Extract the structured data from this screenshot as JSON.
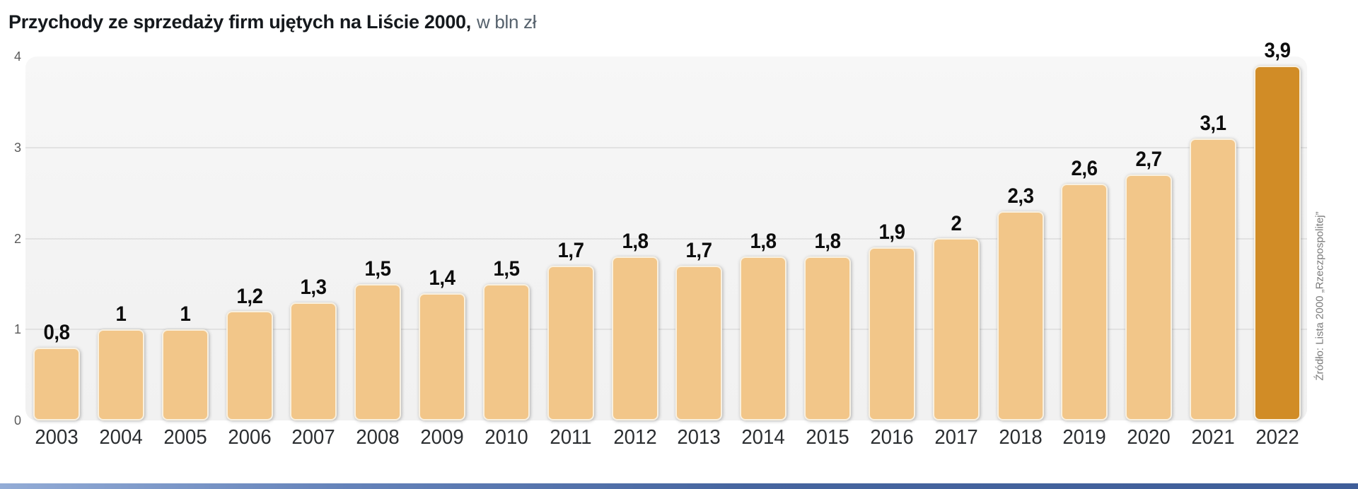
{
  "header": {
    "title": "Przychody ze sprzedaży firm ujętych na Liście 2000,",
    "unit": "w bln zł"
  },
  "source": {
    "text": "Źródło: Lista 2000 „Rzeczpospolitej”"
  },
  "chart_data": {
    "type": "bar",
    "title": "Przychody ze sprzedaży firm ujętych na Liście 2000",
    "ylabel": "w bln zł",
    "categories": [
      "2003",
      "2004",
      "2005",
      "2006",
      "2007",
      "2008",
      "2009",
      "2010",
      "2011",
      "2012",
      "2013",
      "2014",
      "2015",
      "2016",
      "2017",
      "2018",
      "2019",
      "2020",
      "2021",
      "2022"
    ],
    "values": [
      0.8,
      1,
      1,
      1.2,
      1.3,
      1.5,
      1.4,
      1.5,
      1.7,
      1.8,
      1.7,
      1.8,
      1.8,
      1.9,
      2,
      2.3,
      2.6,
      2.7,
      3.1,
      3.9
    ],
    "value_labels": [
      "0,8",
      "1",
      "1",
      "1,2",
      "1,3",
      "1,5",
      "1,4",
      "1,5",
      "1,7",
      "1,8",
      "1,7",
      "1,8",
      "1,8",
      "1,9",
      "2",
      "2,3",
      "2,6",
      "2,7",
      "3,1",
      "3,9"
    ],
    "ylim": [
      0,
      4
    ],
    "yticks": [
      0,
      1,
      2,
      3,
      4
    ],
    "grid": "horizontal",
    "legend": "none",
    "highlight_category": "2022",
    "colors": {
      "bar": "#f2c689",
      "bar_highlight": "#d18c26"
    }
  }
}
